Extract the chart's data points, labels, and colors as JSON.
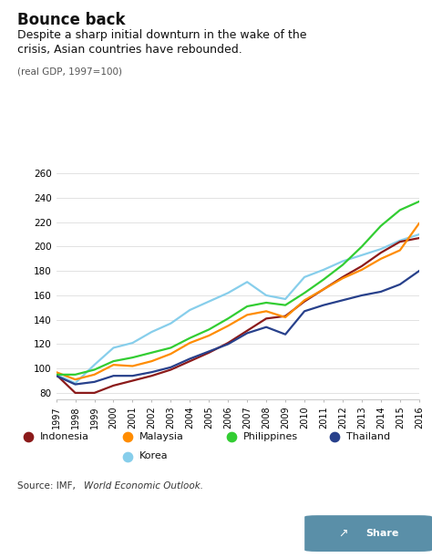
{
  "title_bold": "Bounce back",
  "title_sub": "Despite a sharp initial downturn in the wake of the\ncrisis, Asian countries have rebounded.",
  "ylabel_note": "(real GDP, 1997=100)",
  "source_text": "Source: IMF, ",
  "source_italic": "World Economic Outlook.",
  "years": [
    1997,
    1998,
    1999,
    2000,
    2001,
    2002,
    2003,
    2004,
    2005,
    2006,
    2007,
    2008,
    2009,
    2010,
    2011,
    2012,
    2013,
    2014,
    2015,
    2016
  ],
  "indonesia": [
    95,
    80,
    80,
    86,
    90,
    94,
    99,
    106,
    113,
    121,
    131,
    141,
    143,
    155,
    165,
    175,
    184,
    195,
    204,
    207
  ],
  "malaysia": [
    97,
    91,
    95,
    103,
    102,
    106,
    112,
    121,
    127,
    135,
    144,
    147,
    142,
    156,
    165,
    174,
    181,
    190,
    197,
    219
  ],
  "philippines": [
    95,
    95,
    99,
    106,
    109,
    113,
    117,
    125,
    132,
    141,
    151,
    154,
    152,
    162,
    173,
    185,
    200,
    217,
    230,
    237
  ],
  "thailand": [
    94,
    87,
    89,
    94,
    94,
    97,
    101,
    108,
    114,
    120,
    129,
    134,
    128,
    147,
    152,
    156,
    160,
    163,
    169,
    180
  ],
  "korea": [
    95,
    88,
    103,
    117,
    121,
    130,
    137,
    148,
    155,
    162,
    171,
    160,
    157,
    175,
    181,
    188,
    193,
    198,
    205,
    210
  ],
  "colors": {
    "indonesia": "#8B1A1A",
    "malaysia": "#FF8C00",
    "philippines": "#32CD32",
    "thailand": "#27408B",
    "korea": "#87CEEB"
  },
  "ylim": [
    75,
    265
  ],
  "yticks": [
    80,
    100,
    120,
    140,
    160,
    180,
    200,
    220,
    240,
    260
  ],
  "bg_color": "#ffffff",
  "imf_bar_color": "#7ba7bc"
}
